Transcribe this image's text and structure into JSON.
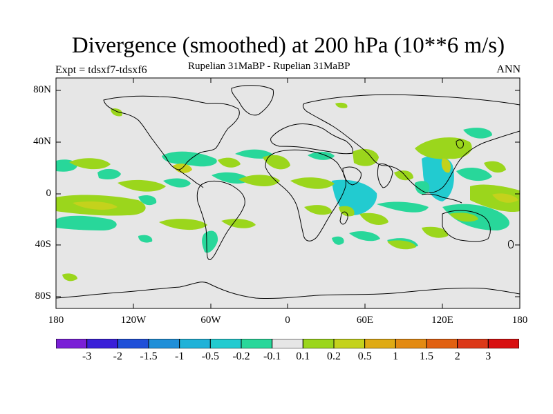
{
  "title": "Divergence (smoothed) at 200 hPa (10**6 m/s)",
  "expt": "Expt = tdsxf7-tdsxf6",
  "subtitle": "Rupelian  31MaBP - Rupelian  31MaBP",
  "season": "ANN",
  "lat_ticks": [
    "80N",
    "40N",
    "0",
    "40S",
    "80S"
  ],
  "lon_ticks": [
    "180",
    "120W",
    "60W",
    "0",
    "60E",
    "120E",
    "180"
  ],
  "colorbar": {
    "labels": [
      "-3",
      "-2",
      "-1.5",
      "-1",
      "-0.5",
      "-0.2",
      "-0.1",
      "0.1",
      "0.2",
      "0.5",
      "1",
      "1.5",
      "2",
      "3"
    ],
    "colors": [
      "#7a1fd6",
      "#3a1fd8",
      "#1f4fd8",
      "#1f8fd8",
      "#1fb2d8",
      "#22cbd0",
      "#28d79a",
      "#e6e6e6",
      "#9bd61c",
      "#c4d21c",
      "#dfaa14",
      "#e38a12",
      "#e16010",
      "#dc3818",
      "#d80f10"
    ]
  },
  "colors": {
    "background": "#e6e6e6",
    "coast": "#000000"
  }
}
